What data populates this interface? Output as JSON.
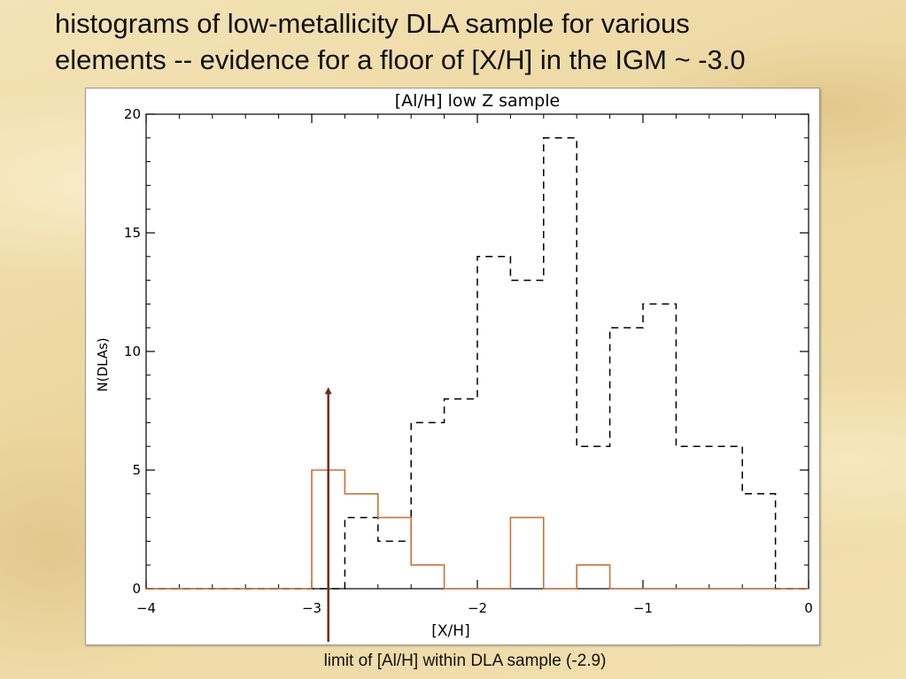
{
  "slide": {
    "title_line1": "histograms of low-metallicity DLA sample for various",
    "title_line2": "elements -- evidence for a floor of [X/H] in the IGM ~ -3.0",
    "caption": "limit of [Al/H] within DLA sample (-2.9)"
  },
  "chart_data": {
    "type": "histogram",
    "title": "[Al/H] low Z sample",
    "xlabel": "[X/H]",
    "ylabel": "N(DLAs)",
    "xlim": [
      -4,
      0
    ],
    "ylim": [
      0,
      20
    ],
    "xticks": [
      -4,
      -3,
      -2,
      -1,
      0
    ],
    "xtick_labels": [
      "−4",
      "−3",
      "−2",
      "−1",
      "0"
    ],
    "yticks": [
      0,
      5,
      10,
      15,
      20
    ],
    "ytick_labels": [
      "0",
      "5",
      "10",
      "15",
      "20"
    ],
    "bin_edges": [
      -4.0,
      -3.8,
      -3.6,
      -3.4,
      -3.2,
      -3.0,
      -2.8,
      -2.6,
      -2.4,
      -2.2,
      -2.0,
      -1.8,
      -1.6,
      -1.4,
      -1.2,
      -1.0,
      -0.8,
      -0.6,
      -0.4,
      -0.2,
      0.0
    ],
    "series": [
      {
        "style": "dashed",
        "color": "#000000",
        "values": [
          0,
          0,
          0,
          0,
          0,
          0,
          3,
          2,
          7,
          8,
          14,
          13,
          19,
          6,
          11,
          12,
          6,
          6,
          4,
          0
        ]
      },
      {
        "style": "solid",
        "color": "#c8733a",
        "values": [
          0,
          0,
          0,
          0,
          0,
          5,
          4,
          3,
          1,
          0,
          0,
          3,
          0,
          1,
          0,
          0,
          0,
          0,
          0,
          0
        ]
      }
    ],
    "annotation": {
      "type": "arrow",
      "x": -2.9,
      "y_top": 8.5,
      "color": "#6b2f1c"
    },
    "grid": false
  }
}
